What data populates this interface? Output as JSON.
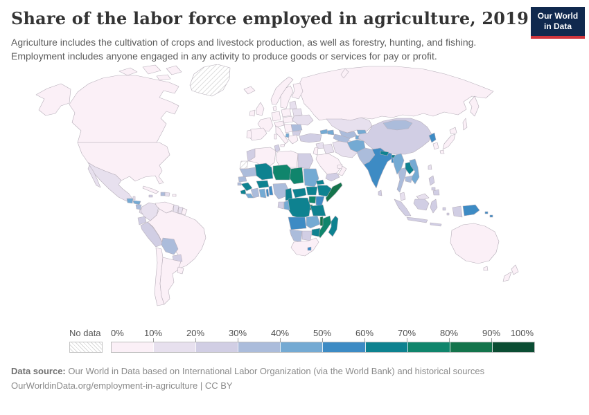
{
  "header": {
    "title": "Share of the labor force employed in agriculture, 2019",
    "subtitle": "Agriculture includes the cultivation of crops and livestock production, as well as forestry, hunting, and fishing. Employment includes anyone engaged in any activity to produce goods or services for pay or profit.",
    "logo": {
      "line1": "Our World",
      "line2": "in Data",
      "bg_color": "#10294e",
      "accent_color": "#d0353c"
    }
  },
  "legend": {
    "no_data_label": "No data"
  },
  "footer": {
    "source_label": "Data source:",
    "source_text": " Our World in Data based on International Labor Organization (via the World Bank) and historical sources",
    "link_text": "OurWorldinData.org/employment-in-agriculture",
    "license_suffix": " | CC BY"
  },
  "chart_data": {
    "type": "choropleth_map",
    "title": "Share of the labor force employed in agriculture, 2019",
    "unit": "% of labor force",
    "legend_position": "bottom",
    "ticks": [
      "0%",
      "10%",
      "20%",
      "30%",
      "40%",
      "50%",
      "60%",
      "70%",
      "80%",
      "90%",
      "100%"
    ],
    "bins": [
      {
        "range": "0-10%",
        "color": "#fbf0f7"
      },
      {
        "range": "10-20%",
        "color": "#e7e0ee"
      },
      {
        "range": "20-30%",
        "color": "#d1cee4"
      },
      {
        "range": "30-40%",
        "color": "#abbcdb"
      },
      {
        "range": "40-50%",
        "color": "#74aad3"
      },
      {
        "range": "50-60%",
        "color": "#3d8bc4"
      },
      {
        "range": "60-70%",
        "color": "#0e8290"
      },
      {
        "range": "70-80%",
        "color": "#10856c"
      },
      {
        "range": "80-90%",
        "color": "#14744c"
      },
      {
        "range": "90-100%",
        "color": "#0b4d33"
      }
    ],
    "no_data_color": "hatched",
    "border_color": "#b6aeb9",
    "regions": [
      {
        "id": "canada",
        "name": "Canada",
        "bin": 0
      },
      {
        "id": "usa",
        "name": "United States",
        "bin": 0
      },
      {
        "id": "greenland",
        "name": "Greenland",
        "bin": "no_data"
      },
      {
        "id": "mexico",
        "name": "Mexico",
        "bin": 1
      },
      {
        "id": "guatemala",
        "name": "Guatemala",
        "bin": 4
      },
      {
        "id": "belize",
        "name": "Belize",
        "bin": 1
      },
      {
        "id": "honduras",
        "name": "Honduras",
        "bin": 4
      },
      {
        "id": "nicaragua",
        "name": "Nicaragua",
        "bin": 3
      },
      {
        "id": "costa-rica",
        "name": "Costa Rica",
        "bin": 1
      },
      {
        "id": "panama",
        "name": "Panama",
        "bin": 1
      },
      {
        "id": "cuba",
        "name": "Cuba",
        "bin": 0
      },
      {
        "id": "jamaica",
        "name": "Jamaica",
        "bin": 2
      },
      {
        "id": "haiti",
        "name": "Haiti",
        "bin": 3
      },
      {
        "id": "dominican-republic",
        "name": "Dominican Republic",
        "bin": 1
      },
      {
        "id": "puerto-rico",
        "name": "Puerto Rico",
        "bin": 0
      },
      {
        "id": "colombia",
        "name": "Colombia",
        "bin": 1
      },
      {
        "id": "venezuela",
        "name": "Venezuela",
        "bin": 0
      },
      {
        "id": "guyana",
        "name": "Guyana",
        "bin": 1
      },
      {
        "id": "suriname",
        "name": "Suriname",
        "bin": 1
      },
      {
        "id": "french-guiana",
        "name": "French Guiana",
        "bin": 0
      },
      {
        "id": "ecuador",
        "name": "Ecuador",
        "bin": 2
      },
      {
        "id": "peru",
        "name": "Peru",
        "bin": 2
      },
      {
        "id": "brazil",
        "name": "Brazil",
        "bin": 0
      },
      {
        "id": "bolivia",
        "name": "Bolivia",
        "bin": 3
      },
      {
        "id": "paraguay",
        "name": "Paraguay",
        "bin": 2
      },
      {
        "id": "chile",
        "name": "Chile",
        "bin": 0
      },
      {
        "id": "argentina",
        "name": "Argentina",
        "bin": 0
      },
      {
        "id": "uruguay",
        "name": "Uruguay",
        "bin": 0
      },
      {
        "id": "iceland",
        "name": "Iceland",
        "bin": 0
      },
      {
        "id": "norway",
        "name": "Norway",
        "bin": 0
      },
      {
        "id": "sweden",
        "name": "Sweden",
        "bin": 0
      },
      {
        "id": "finland",
        "name": "Finland",
        "bin": 0
      },
      {
        "id": "uk",
        "name": "United Kingdom",
        "bin": 0
      },
      {
        "id": "ireland",
        "name": "Ireland",
        "bin": 0
      },
      {
        "id": "denmark",
        "name": "Denmark",
        "bin": 0
      },
      {
        "id": "germany",
        "name": "Germany",
        "bin": 0
      },
      {
        "id": "france",
        "name": "France",
        "bin": 0
      },
      {
        "id": "spain",
        "name": "Spain",
        "bin": 0
      },
      {
        "id": "portugal",
        "name": "Portugal",
        "bin": 0
      },
      {
        "id": "italy",
        "name": "Italy",
        "bin": 0
      },
      {
        "id": "alpine",
        "name": "Switzerland and Austria",
        "bin": 0
      },
      {
        "id": "poland",
        "name": "Poland",
        "bin": 0
      },
      {
        "id": "baltics",
        "name": "Baltic states",
        "bin": 1
      },
      {
        "id": "belarus",
        "name": "Belarus",
        "bin": 1
      },
      {
        "id": "central-europe",
        "name": "Czechia, Slovakia and Hungary",
        "bin": 0
      },
      {
        "id": "ukraine",
        "name": "Ukraine",
        "bin": 1
      },
      {
        "id": "romania",
        "name": "Romania",
        "bin": 3
      },
      {
        "id": "serbia",
        "name": "Western Balkans",
        "bin": 0
      },
      {
        "id": "bulgaria",
        "name": "Bulgaria",
        "bin": 2
      },
      {
        "id": "albania",
        "name": "Albania",
        "bin": 4
      },
      {
        "id": "greece",
        "name": "Greece",
        "bin": 0
      },
      {
        "id": "russia",
        "name": "Russia",
        "bin": 0
      },
      {
        "id": "turkey",
        "name": "Turkey",
        "bin": 2
      },
      {
        "id": "georgia",
        "name": "Georgia",
        "bin": 4
      },
      {
        "id": "azerbaijan",
        "name": "Azerbaijan",
        "bin": 4
      },
      {
        "id": "syria",
        "name": "Syria",
        "bin": 1
      },
      {
        "id": "iraq",
        "name": "Iraq",
        "bin": 1
      },
      {
        "id": "levant",
        "name": "Israel and Jordan",
        "bin": 0
      },
      {
        "id": "saudi-arabia",
        "name": "Saudi Arabia",
        "bin": 0
      },
      {
        "id": "yemen",
        "name": "Yemen",
        "bin": 2
      },
      {
        "id": "oman",
        "name": "Oman",
        "bin": 0
      },
      {
        "id": "uae",
        "name": "United Arab Emirates",
        "bin": 0
      },
      {
        "id": "iran",
        "name": "Iran",
        "bin": 1
      },
      {
        "id": "kazakhstan",
        "name": "Kazakhstan",
        "bin": 1
      },
      {
        "id": "uzbekistan",
        "name": "Uzbekistan",
        "bin": 3
      },
      {
        "id": "turkmenistan",
        "name": "Turkmenistan",
        "bin": 3
      },
      {
        "id": "kyrgyzstan",
        "name": "Kyrgyzstan",
        "bin": 4
      },
      {
        "id": "tajikistan",
        "name": "Tajikistan",
        "bin": 4
      },
      {
        "id": "afghanistan",
        "name": "Afghanistan",
        "bin": 4
      },
      {
        "id": "pakistan",
        "name": "Pakistan",
        "bin": 3
      },
      {
        "id": "india",
        "name": "India",
        "bin": 5
      },
      {
        "id": "nepal",
        "name": "Nepal",
        "bin": 6
      },
      {
        "id": "bhutan",
        "name": "Bhutan",
        "bin": 6
      },
      {
        "id": "bangladesh",
        "name": "Bangladesh",
        "bin": 5
      },
      {
        "id": "sri-lanka",
        "name": "Sri Lanka",
        "bin": 2
      },
      {
        "id": "myanmar",
        "name": "Myanmar",
        "bin": 4
      },
      {
        "id": "thailand",
        "name": "Thailand",
        "bin": 3
      },
      {
        "id": "laos",
        "name": "Laos",
        "bin": 6
      },
      {
        "id": "vietnam",
        "name": "Vietnam",
        "bin": 4
      },
      {
        "id": "cambodia",
        "name": "Cambodia",
        "bin": 3
      },
      {
        "id": "malaysia",
        "name": "Malaysia",
        "bin": 1
      },
      {
        "id": "indonesia",
        "name": "Indonesia",
        "bin": 2
      },
      {
        "id": "philippines",
        "name": "Philippines",
        "bin": 2
      },
      {
        "id": "taiwan",
        "name": "Taiwan",
        "bin": 1
      },
      {
        "id": "china",
        "name": "China",
        "bin": 2
      },
      {
        "id": "mongolia",
        "name": "Mongolia",
        "bin": 3
      },
      {
        "id": "north-korea",
        "name": "North Korea",
        "bin": 5
      },
      {
        "id": "south-korea",
        "name": "South Korea",
        "bin": 0
      },
      {
        "id": "japan",
        "name": "Japan",
        "bin": 0
      },
      {
        "id": "morocco",
        "name": "Morocco",
        "bin": 2
      },
      {
        "id": "western-sahara",
        "name": "Western Sahara",
        "bin": "no_data"
      },
      {
        "id": "algeria",
        "name": "Algeria",
        "bin": 0
      },
      {
        "id": "tunisia",
        "name": "Tunisia",
        "bin": 2
      },
      {
        "id": "libya",
        "name": "Libya",
        "bin": 0
      },
      {
        "id": "egypt",
        "name": "Egypt",
        "bin": 2
      },
      {
        "id": "mauritania",
        "name": "Mauritania",
        "bin": 3
      },
      {
        "id": "mali",
        "name": "Mali",
        "bin": 6
      },
      {
        "id": "niger",
        "name": "Niger",
        "bin": 7
      },
      {
        "id": "chad",
        "name": "Chad",
        "bin": 7
      },
      {
        "id": "sudan",
        "name": "Sudan",
        "bin": 4
      },
      {
        "id": "eritrea",
        "name": "Eritrea",
        "bin": 6
      },
      {
        "id": "senegal",
        "name": "Senegal",
        "bin": 3
      },
      {
        "id": "guinea-bissau",
        "name": "Guinea-Bissau",
        "bin": 3
      },
      {
        "id": "guinea",
        "name": "Guinea",
        "bin": 6
      },
      {
        "id": "sierra-leone",
        "name": "Sierra Leone",
        "bin": 6
      },
      {
        "id": "liberia",
        "name": "Liberia",
        "bin": 4
      },
      {
        "id": "ivory-coast",
        "name": "Cote d'Ivoire",
        "bin": 3
      },
      {
        "id": "ghana",
        "name": "Ghana",
        "bin": 4
      },
      {
        "id": "burkina-faso",
        "name": "Burkina Faso",
        "bin": 6
      },
      {
        "id": "togo",
        "name": "Togo",
        "bin": 5
      },
      {
        "id": "benin",
        "name": "Benin",
        "bin": 5
      },
      {
        "id": "nigeria",
        "name": "Nigeria",
        "bin": 3
      },
      {
        "id": "cameroon",
        "name": "Cameroon",
        "bin": 6
      },
      {
        "id": "car",
        "name": "Central African Republic",
        "bin": 6
      },
      {
        "id": "south-sudan",
        "name": "South Sudan",
        "bin": 6
      },
      {
        "id": "ethiopia",
        "name": "Ethiopia",
        "bin": 6
      },
      {
        "id": "somalia",
        "name": "Somalia",
        "bin": 8
      },
      {
        "id": "kenya",
        "name": "Kenya",
        "bin": 5
      },
      {
        "id": "uganda",
        "name": "Uganda",
        "bin": 7
      },
      {
        "id": "rwanda",
        "name": "Rwanda",
        "bin": 8
      },
      {
        "id": "burundi",
        "name": "Burundi",
        "bin": 8
      },
      {
        "id": "drc",
        "name": "Democratic Republic of Congo",
        "bin": 6
      },
      {
        "id": "congo",
        "name": "Congo",
        "bin": 4
      },
      {
        "id": "gabon",
        "name": "Gabon",
        "bin": 2
      },
      {
        "id": "angola",
        "name": "Angola",
        "bin": 5
      },
      {
        "id": "zambia",
        "name": "Zambia",
        "bin": 4
      },
      {
        "id": "malawi",
        "name": "Malawi",
        "bin": 8
      },
      {
        "id": "tanzania",
        "name": "Tanzania",
        "bin": 6
      },
      {
        "id": "mozambique",
        "name": "Mozambique",
        "bin": 7
      },
      {
        "id": "zimbabwe",
        "name": "Zimbabwe",
        "bin": 6
      },
      {
        "id": "botswana",
        "name": "Botswana",
        "bin": 2
      },
      {
        "id": "namibia",
        "name": "Namibia",
        "bin": 3
      },
      {
        "id": "south-africa",
        "name": "South Africa",
        "bin": 0
      },
      {
        "id": "lesotho",
        "name": "Lesotho",
        "bin": 5
      },
      {
        "id": "madagascar",
        "name": "Madagascar",
        "bin": 6
      },
      {
        "id": "australia",
        "name": "Australia",
        "bin": 0
      },
      {
        "id": "png",
        "name": "Papua New Guinea",
        "bin": 5
      },
      {
        "id": "solomon-islands",
        "name": "Solomon Islands",
        "bin": 5
      },
      {
        "id": "new-zealand",
        "name": "New Zealand",
        "bin": 0
      }
    ]
  }
}
